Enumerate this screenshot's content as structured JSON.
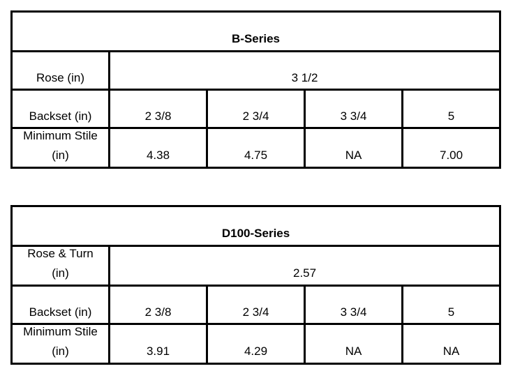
{
  "tables": [
    {
      "title": "B-Series",
      "rose_label": "Rose (in)",
      "rose_value": "3 1/2",
      "backset_label": "Backset (in)",
      "backset_values": [
        "2 3/8",
        "2 3/4",
        "3 3/4",
        "5"
      ],
      "stile_label_line1": "Minimum Stile",
      "stile_label_line2": "(in)",
      "stile_values": [
        "4.38",
        "4.75",
        "NA",
        "7.00"
      ]
    },
    {
      "title": "D100-Series",
      "rose_label_line1": "Rose & Turn",
      "rose_label_line2": "(in)",
      "rose_value": "2.57",
      "backset_label": "Backset (in)",
      "backset_values": [
        "2 3/8",
        "2 3/4",
        "3 3/4",
        "5"
      ],
      "stile_label_line1": "Minimum Stile",
      "stile_label_line2": "(in)",
      "stile_values": [
        "3.91",
        "4.29",
        "NA",
        "NA"
      ]
    }
  ]
}
